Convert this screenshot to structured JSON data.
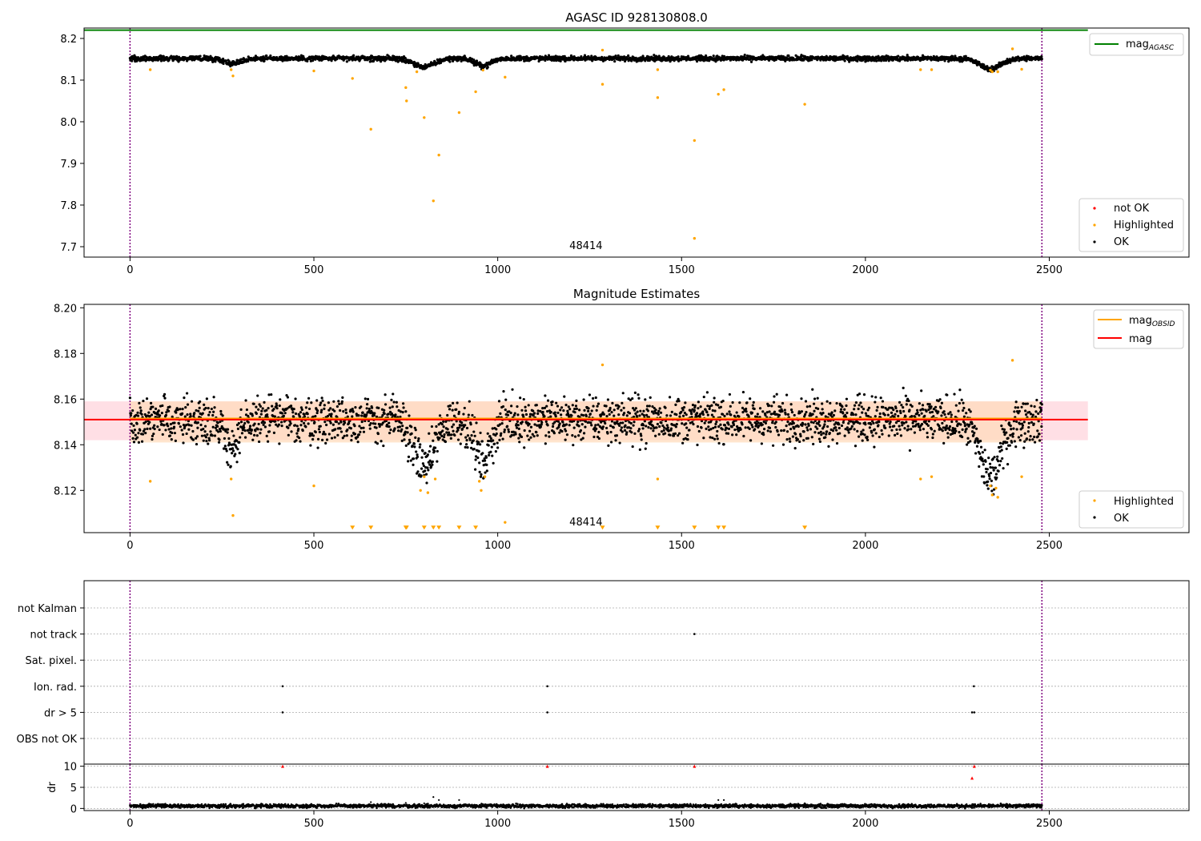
{
  "chart_data": [
    {
      "type": "scatter",
      "title": "AGASC ID 928130808.0",
      "xlim": [
        -125,
        2880
      ],
      "ylim": [
        7.675,
        8.225
      ],
      "x_ticks": [
        0,
        500,
        1000,
        1500,
        2000,
        2500
      ],
      "x_tick_labels": [
        "0",
        "500",
        "1000",
        "1500",
        "2000",
        "2500"
      ],
      "y_ticks": [
        7.7,
        7.8,
        7.9,
        8.0,
        8.1,
        8.2
      ],
      "y_tick_labels": [
        "7.7",
        "7.8",
        "7.9",
        "8.0",
        "8.1",
        "8.2"
      ],
      "annotation": "48414",
      "annotation_x": 1240,
      "vlines": [
        0,
        2480
      ],
      "reference_line": {
        "y": 8.22,
        "x_range": [
          -125,
          2605
        ],
        "color": "#008000"
      },
      "legend_lines": [
        {
          "label": "mag",
          "sub": "AGASC",
          "color": "#008000"
        }
      ],
      "legend_points": [
        {
          "label": "not OK",
          "color": "#ff0000"
        },
        {
          "label": "Highlighted",
          "color": "#ffa500"
        },
        {
          "label": "OK",
          "color": "#000000"
        }
      ],
      "ok_trend": {
        "base": 8.152,
        "dips": [
          [
            280,
            30,
            -0.012
          ],
          [
            800,
            40,
            -0.02
          ],
          [
            960,
            30,
            -0.018
          ],
          [
            2340,
            40,
            -0.025
          ]
        ],
        "noise": 0.005
      },
      "highlighted_points": [
        [
          55,
          8.125
        ],
        [
          275,
          8.125
        ],
        [
          280,
          8.11
        ],
        [
          500,
          8.122
        ],
        [
          605,
          8.104
        ],
        [
          655,
          7.982
        ],
        [
          750,
          8.082
        ],
        [
          752,
          8.05
        ],
        [
          780,
          8.12
        ],
        [
          800,
          8.01
        ],
        [
          825,
          7.81
        ],
        [
          840,
          7.92
        ],
        [
          895,
          8.022
        ],
        [
          940,
          8.072
        ],
        [
          960,
          8.124
        ],
        [
          1020,
          8.107
        ],
        [
          1285,
          8.09
        ],
        [
          1285,
          8.172
        ],
        [
          1435,
          8.058
        ],
        [
          1435,
          8.125
        ],
        [
          1535,
          7.955
        ],
        [
          1535,
          7.72
        ],
        [
          1600,
          8.066
        ],
        [
          1615,
          8.077
        ],
        [
          1835,
          8.042
        ],
        [
          2150,
          8.125
        ],
        [
          2180,
          8.125
        ],
        [
          2340,
          8.124
        ],
        [
          2345,
          8.12
        ],
        [
          2360,
          8.12
        ],
        [
          2400,
          8.175
        ],
        [
          2425,
          8.126
        ]
      ],
      "colors": {
        "ok": "#000000",
        "highlighted": "#ffa500",
        "not_ok": "#ff0000",
        "vline": "#800080"
      }
    },
    {
      "type": "scatter",
      "title": "Magnitude Estimates",
      "xlim": [
        -125,
        2880
      ],
      "ylim": [
        8.1015,
        8.2015
      ],
      "x_ticks": [
        0,
        500,
        1000,
        1500,
        2000,
        2500
      ],
      "x_tick_labels": [
        "0",
        "500",
        "1000",
        "1500",
        "2000",
        "2500"
      ],
      "y_ticks": [
        8.12,
        8.14,
        8.16,
        8.18,
        8.2
      ],
      "y_tick_labels": [
        "8.12",
        "8.14",
        "8.16",
        "8.18",
        "8.20"
      ],
      "annotation": "48414",
      "annotation_x": 1240,
      "vlines": [
        0,
        2480
      ],
      "band_outer": {
        "y": [
          8.142,
          8.159
        ],
        "color": "#ffc0cb"
      },
      "band_inner": {
        "y": [
          8.141,
          8.159
        ],
        "color": "#ffdab9"
      },
      "mag_line": {
        "y": 8.151,
        "x_range": [
          -125,
          2605
        ],
        "color": "#ff0000"
      },
      "mag_obsid_line": {
        "y": 8.1515,
        "x_range": [
          0,
          2480
        ],
        "color": "#ffa500"
      },
      "legend_lines": [
        {
          "label": "mag",
          "sub": "OBSID",
          "color": "#ffa500"
        },
        {
          "label": "mag",
          "sub": "",
          "color": "#ff0000"
        }
      ],
      "legend_points": [
        {
          "label": "Highlighted",
          "color": "#ffa500"
        },
        {
          "label": "OK",
          "color": "#000000"
        }
      ],
      "ok_trend": {
        "base": 8.151,
        "dips": [
          [
            280,
            30,
            -0.012
          ],
          [
            800,
            40,
            -0.02
          ],
          [
            960,
            30,
            -0.018
          ],
          [
            2340,
            40,
            -0.025
          ]
        ],
        "noise": 0.007
      },
      "highlighted_points": [
        [
          55,
          8.124
        ],
        [
          275,
          8.125
        ],
        [
          280,
          8.109
        ],
        [
          500,
          8.122
        ],
        [
          790,
          8.12
        ],
        [
          800,
          8.126
        ],
        [
          810,
          8.119
        ],
        [
          830,
          8.125
        ],
        [
          950,
          8.124
        ],
        [
          955,
          8.12
        ],
        [
          965,
          8.126
        ],
        [
          1020,
          8.106
        ],
        [
          1285,
          8.175
        ],
        [
          1435,
          8.125
        ],
        [
          2150,
          8.125
        ],
        [
          2180,
          8.126
        ],
        [
          2340,
          8.122
        ],
        [
          2345,
          8.118
        ],
        [
          2355,
          8.121
        ],
        [
          2360,
          8.117
        ],
        [
          2400,
          8.177
        ],
        [
          2425,
          8.126
        ]
      ],
      "lower_markers_y": 8.1035,
      "lower_markers": [
        605,
        655,
        750,
        752,
        800,
        825,
        840,
        895,
        940,
        1285,
        1435,
        1535,
        1600,
        1615,
        1835
      ],
      "colors": {
        "ok": "#000000",
        "highlighted": "#ffa500",
        "vline": "#800080"
      }
    },
    {
      "type": "scatter",
      "title": "",
      "xlim": [
        -125,
        2880
      ],
      "categories": [
        "not Kalman",
        "not track",
        "Sat. pixel.",
        "Ion. rad.",
        "dr > 5",
        "OBS not OK"
      ],
      "flag_points": [
        {
          "category": "not track",
          "x": [
            1535
          ]
        },
        {
          "category": "Ion. rad.",
          "x": [
            415,
            1135,
            2295
          ]
        },
        {
          "category": "dr > 5",
          "x": [
            415,
            1135,
            2290,
            2296
          ]
        }
      ],
      "vlines": [
        0,
        2480
      ],
      "colors": {
        "flag": "#000000",
        "vline": "#800080",
        "grid": "#aaaaaa"
      }
    },
    {
      "type": "scatter",
      "title": "",
      "ylabel": "dr",
      "xlim": [
        -125,
        2880
      ],
      "ylim": [
        -0.5,
        10.5
      ],
      "x_ticks": [
        0,
        500,
        1000,
        1500,
        2000,
        2500
      ],
      "x_tick_labels": [
        "0",
        "500",
        "1000",
        "1500",
        "2000",
        "2500"
      ],
      "y_ticks": [
        0,
        5,
        10
      ],
      "y_tick_labels": [
        "0",
        "5",
        "10"
      ],
      "vlines": [
        0,
        2480
      ],
      "dr_trend": {
        "base": 0.6,
        "noise": 0.35
      },
      "dr_outliers": [
        [
          655,
          1.5
        ],
        [
          750,
          1.3
        ],
        [
          800,
          1.2
        ],
        [
          825,
          2.7
        ],
        [
          840,
          2.0
        ],
        [
          895,
          2.0
        ],
        [
          1600,
          2.0
        ],
        [
          1615,
          2.0
        ]
      ],
      "clipped_points": [
        [
          415,
          10
        ],
        [
          1135,
          10
        ],
        [
          1535,
          10
        ],
        [
          2290,
          7.2
        ],
        [
          2296,
          10
        ]
      ],
      "colors": {
        "ok": "#000000",
        "clipped": "#ff0000",
        "vline": "#800080",
        "grid": "#aaaaaa"
      }
    }
  ]
}
